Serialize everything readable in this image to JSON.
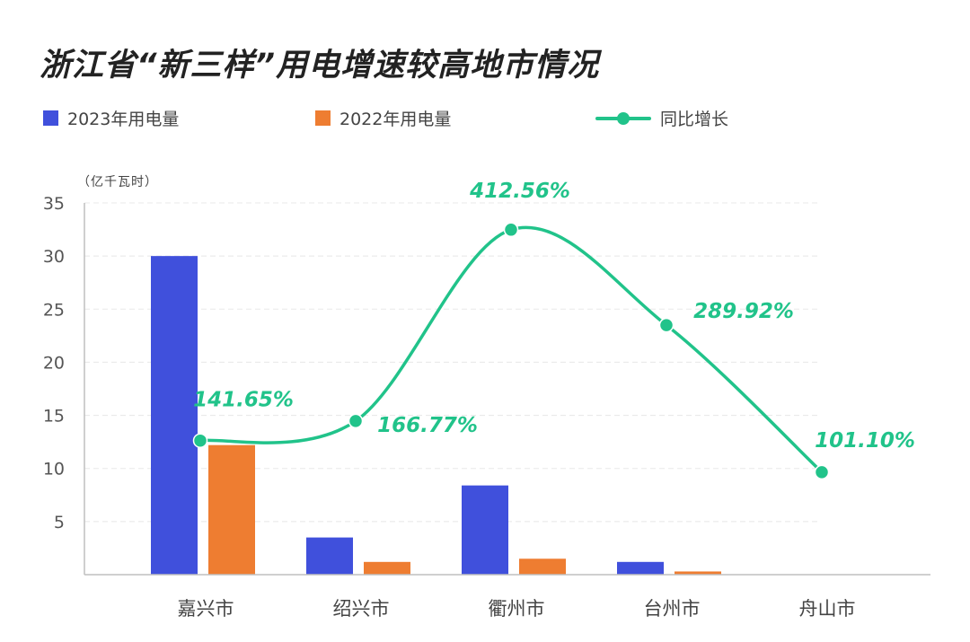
{
  "title": "浙江省“新三样”用电增速较高地市情况",
  "unit_label": "（亿千瓦时）",
  "colors": {
    "bar2023": "#4050dc",
    "bar2022": "#ee7d31",
    "line": "#21c38a",
    "grid": "#e8e8e8",
    "axis": "#bfbfbf"
  },
  "legend": {
    "bar2023": "2023年用电量",
    "bar2022": "2022年用电量",
    "line": "同比增长"
  },
  "chart_data": {
    "type": "bar",
    "categories": [
      "嘉兴市",
      "绍兴市",
      "衢州市",
      "台州市",
      "舟山市"
    ],
    "series": [
      {
        "name": "2023年用电量",
        "type": "bar",
        "values": [
          30.0,
          3.5,
          8.4,
          1.2,
          0
        ]
      },
      {
        "name": "2022年用电量",
        "type": "bar",
        "values": [
          12.2,
          1.2,
          1.5,
          0.3,
          0
        ]
      },
      {
        "name": "同比增长",
        "type": "line",
        "values": [
          141.65,
          166.77,
          412.56,
          289.92,
          101.1
        ],
        "labels": [
          "141.65%",
          "166.77%",
          "412.56%",
          "289.92%",
          "101.10%"
        ]
      }
    ],
    "ylim": [
      0,
      35
    ],
    "yticks": [
      5,
      10,
      15,
      20,
      25,
      30,
      35
    ],
    "ylabel": "（亿千瓦时）",
    "grid": true,
    "legend_position": "top-left"
  }
}
